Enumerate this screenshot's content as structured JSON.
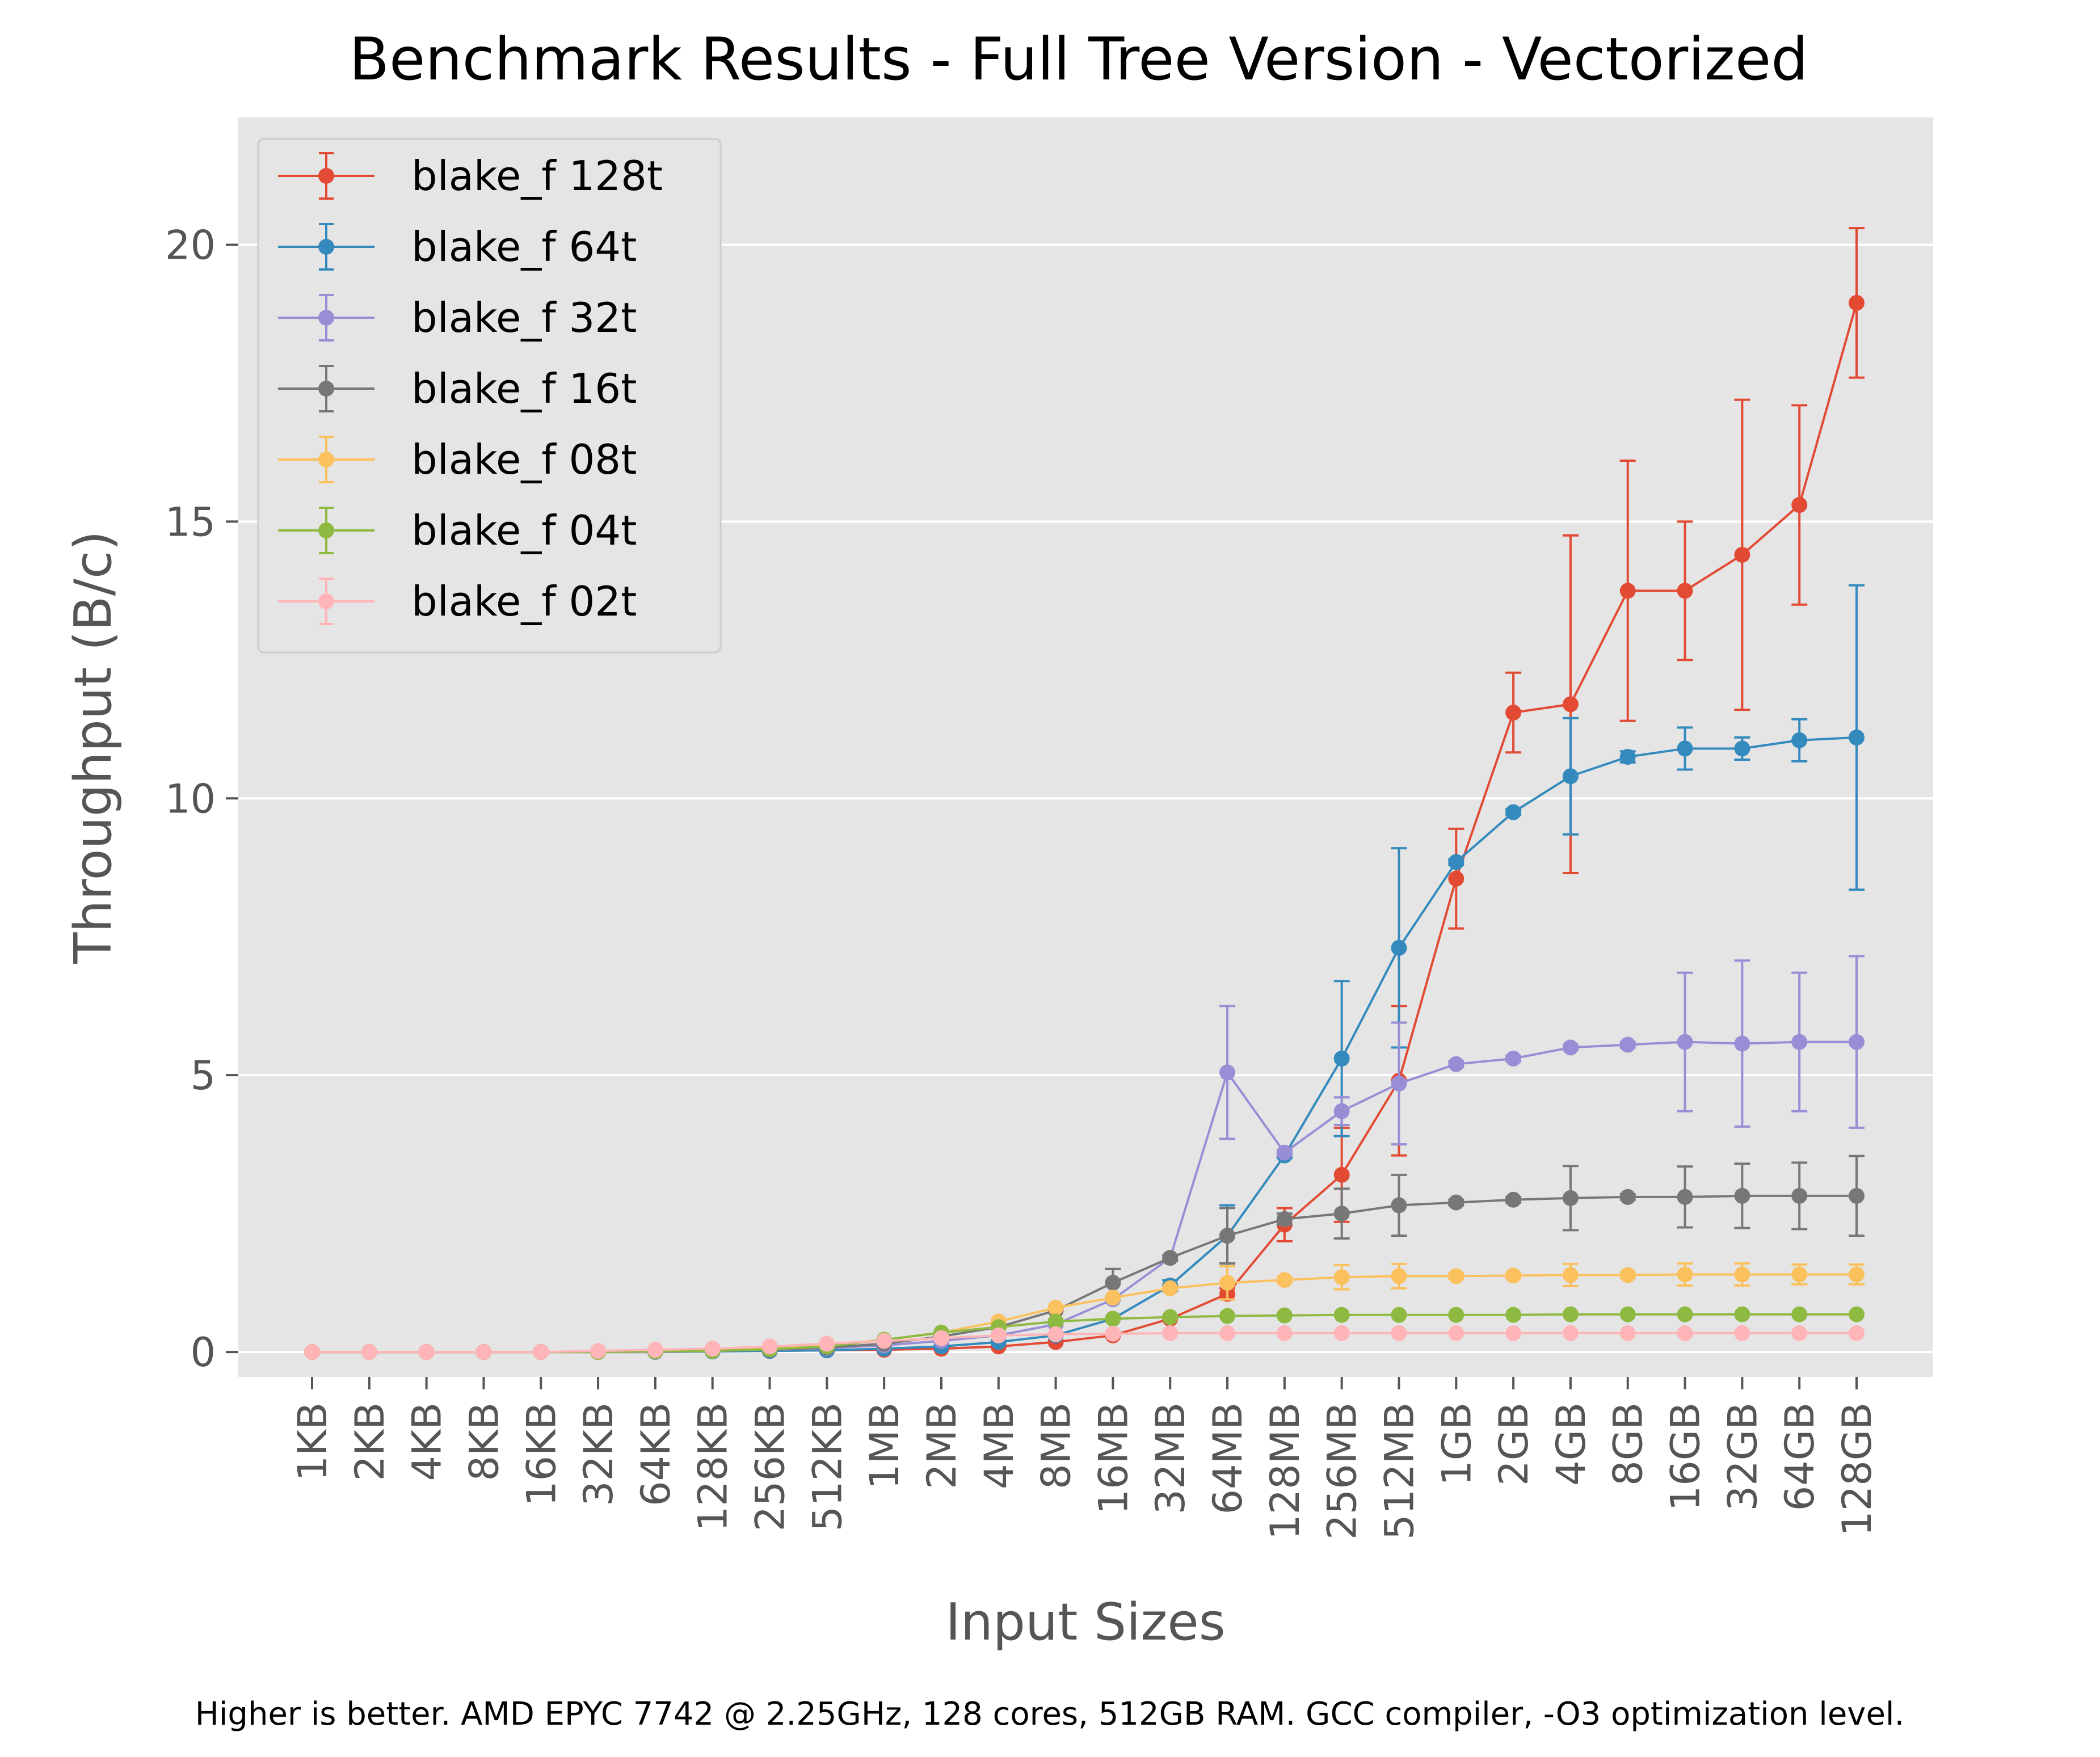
{
  "chart_data": {
    "type": "line",
    "title": "Benchmark Results - Full Tree Version - Vectorized",
    "xlabel": "Input Sizes",
    "ylabel": "Throughput (B/c)",
    "footnote": "Higher is better. AMD EPYC 7742 @ 2.25GHz, 128 cores, 512GB RAM. GCC compiler, -O3 optimization level.",
    "categories": [
      "1KB",
      "2KB",
      "4KB",
      "8KB",
      "16KB",
      "32KB",
      "64KB",
      "128KB",
      "256KB",
      "512KB",
      "1MB",
      "2MB",
      "4MB",
      "8MB",
      "16MB",
      "32MB",
      "64MB",
      "128MB",
      "256MB",
      "512MB",
      "1GB",
      "2GB",
      "4GB",
      "8GB",
      "16GB",
      "32GB",
      "64GB",
      "128GB"
    ],
    "yticks": [
      0,
      5,
      10,
      15,
      20
    ],
    "ylim": [
      -0.45,
      22.3
    ],
    "grid": true,
    "legend_position": "top-left",
    "background": "#e5e5e5",
    "series": [
      {
        "name": "blake_f 128t",
        "color": "#e24a33",
        "values": [
          0,
          0,
          0,
          0,
          0,
          0,
          0,
          0.01,
          0.02,
          0.03,
          0.04,
          0.06,
          0.1,
          0.18,
          0.3,
          0.6,
          1.05,
          2.3,
          3.2,
          4.9,
          8.55,
          11.55,
          11.7,
          13.75,
          13.75,
          14.4,
          15.3,
          18.95
        ],
        "errors": [
          0,
          0,
          0,
          0,
          0,
          0,
          0,
          0,
          0,
          0,
          0,
          0,
          0,
          0,
          0,
          0,
          0.1,
          0.3,
          0.85,
          1.35,
          0.9,
          0.72,
          3.05,
          2.35,
          1.25,
          2.8,
          1.8,
          1.35
        ]
      },
      {
        "name": "blake_f 64t",
        "color": "#348abd",
        "values": [
          0,
          0,
          0,
          0,
          0,
          0,
          0,
          0.01,
          0.02,
          0.03,
          0.06,
          0.1,
          0.18,
          0.3,
          0.6,
          1.2,
          2.1,
          3.55,
          5.3,
          7.3,
          8.85,
          9.75,
          10.4,
          10.75,
          10.9,
          10.9,
          11.05,
          11.1
        ],
        "errors": [
          0,
          0,
          0,
          0,
          0,
          0,
          0,
          0,
          0,
          0,
          0,
          0,
          0,
          0,
          0,
          0.1,
          0.55,
          0.05,
          1.4,
          1.8,
          0.05,
          0.05,
          1.05,
          0.1,
          0.38,
          0.2,
          0.38,
          2.75
        ]
      },
      {
        "name": "blake_f 32t",
        "color": "#988ed5",
        "values": [
          0,
          0,
          0,
          0,
          0,
          0,
          0,
          0.02,
          0.04,
          0.07,
          0.12,
          0.2,
          0.3,
          0.5,
          0.95,
          1.7,
          5.05,
          3.6,
          4.35,
          4.85,
          5.2,
          5.3,
          5.5,
          5.55,
          5.6,
          5.57,
          5.6,
          5.6
        ],
        "errors": [
          0,
          0,
          0,
          0,
          0,
          0,
          0,
          0,
          0,
          0,
          0,
          0,
          0,
          0,
          0,
          0,
          1.2,
          0.05,
          0.25,
          1.1,
          0.05,
          0.05,
          0.05,
          0.05,
          1.25,
          1.5,
          1.25,
          1.55
        ]
      },
      {
        "name": "blake_f 16t",
        "color": "#777777",
        "values": [
          0,
          0,
          0,
          0,
          0,
          0,
          0.01,
          0.02,
          0.04,
          0.08,
          0.15,
          0.28,
          0.45,
          0.75,
          1.25,
          1.7,
          2.1,
          2.4,
          2.5,
          2.65,
          2.7,
          2.75,
          2.78,
          2.8,
          2.8,
          2.82,
          2.82,
          2.82
        ],
        "errors": [
          0,
          0,
          0,
          0,
          0,
          0,
          0,
          0,
          0,
          0,
          0,
          0,
          0,
          0,
          0.25,
          0.05,
          0.5,
          0.1,
          0.45,
          0.55,
          0.05,
          0.05,
          0.58,
          0.05,
          0.55,
          0.58,
          0.6,
          0.72
        ]
      },
      {
        "name": "blake_f 08t",
        "color": "#fbc15e",
        "values": [
          0,
          0,
          0,
          0,
          0,
          0,
          0.01,
          0.03,
          0.06,
          0.12,
          0.22,
          0.35,
          0.55,
          0.8,
          0.98,
          1.15,
          1.25,
          1.3,
          1.35,
          1.37,
          1.37,
          1.38,
          1.39,
          1.39,
          1.4,
          1.4,
          1.4,
          1.4
        ],
        "errors": [
          0,
          0,
          0,
          0,
          0,
          0,
          0,
          0,
          0,
          0,
          0,
          0,
          0,
          0,
          0,
          0,
          0.3,
          0.05,
          0.22,
          0.22,
          0.05,
          0.05,
          0.2,
          0.05,
          0.2,
          0.2,
          0.18,
          0.18
        ]
      },
      {
        "name": "blake_f 04t",
        "color": "#8eba42",
        "values": [
          0,
          0,
          0,
          0,
          0,
          0,
          0.01,
          0.02,
          0.05,
          0.1,
          0.22,
          0.35,
          0.45,
          0.55,
          0.6,
          0.63,
          0.65,
          0.66,
          0.67,
          0.67,
          0.67,
          0.67,
          0.68,
          0.68,
          0.68,
          0.68,
          0.68,
          0.68
        ],
        "errors": [
          0,
          0,
          0,
          0,
          0,
          0,
          0,
          0,
          0,
          0,
          0,
          0,
          0,
          0,
          0,
          0,
          0,
          0,
          0,
          0,
          0,
          0,
          0,
          0,
          0,
          0,
          0,
          0
        ]
      },
      {
        "name": "blake_f 02t",
        "color": "#ffb5b8",
        "values": [
          0,
          0,
          0,
          0,
          0,
          0.02,
          0.04,
          0.06,
          0.1,
          0.15,
          0.2,
          0.25,
          0.3,
          0.32,
          0.33,
          0.34,
          0.34,
          0.34,
          0.34,
          0.34,
          0.34,
          0.34,
          0.34,
          0.34,
          0.34,
          0.34,
          0.34,
          0.34
        ],
        "errors": [
          0,
          0,
          0,
          0,
          0,
          0,
          0,
          0,
          0,
          0,
          0,
          0,
          0,
          0,
          0,
          0,
          0,
          0,
          0,
          0,
          0,
          0,
          0,
          0,
          0,
          0,
          0,
          0
        ]
      }
    ]
  }
}
